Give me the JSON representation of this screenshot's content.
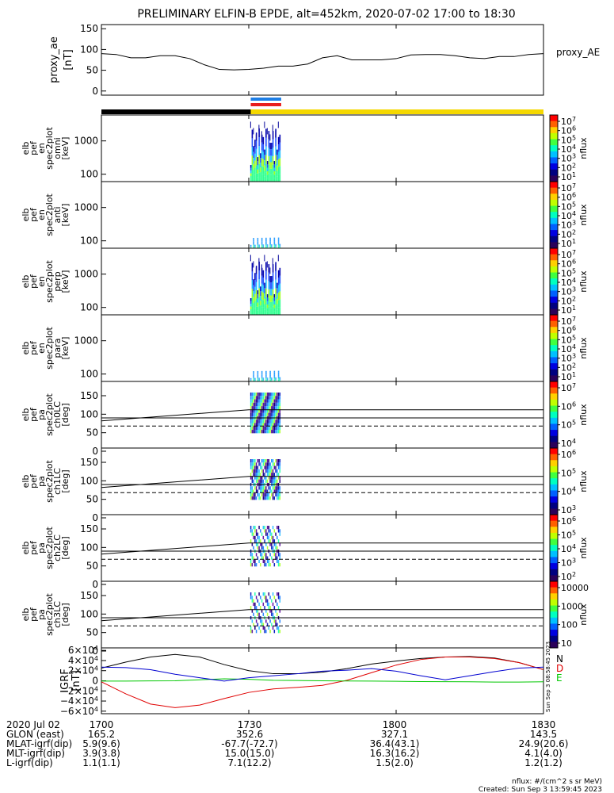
{
  "title": "PRELIMINARY ELFIN-B EPDE, alt=452km, 2020-07-02 17:00 to 18:30",
  "time_ticks": [
    "1700",
    "1730",
    "1800",
    "1830"
  ],
  "time_tick_minutes": [
    0,
    30,
    60,
    90
  ],
  "colors": {
    "spin_blue": "#1e7fe6",
    "spin_red": "#e81e1e",
    "shadow_bar": "#000000",
    "sun_bar": "#f5d800",
    "grf_n": "#000000",
    "grf_e": "#00c800",
    "grf_d": "#e00000",
    "grf_total": "#0000d0"
  },
  "chart_data": [
    {
      "type": "line",
      "id": "proxy_ae",
      "ylabel": [
        "proxy_ae",
        "[nT]"
      ],
      "series_label": "proxy_AE",
      "yticks": [
        "150",
        "100",
        "50",
        "0"
      ],
      "ytick_values": [
        150,
        100,
        50,
        0
      ],
      "ylim": [
        -10,
        160
      ],
      "x_minutes": [
        0,
        3,
        6,
        9,
        12,
        15,
        18,
        21,
        24,
        27,
        30,
        33,
        36,
        39,
        42,
        45,
        48,
        51,
        54,
        57,
        60,
        63,
        66,
        69,
        72,
        75,
        78,
        81,
        84,
        87,
        90
      ],
      "values": [
        90,
        88,
        80,
        80,
        85,
        85,
        78,
        63,
        52,
        51,
        52,
        55,
        60,
        60,
        65,
        80,
        85,
        75,
        75,
        75,
        78,
        87,
        88,
        88,
        85,
        80,
        78,
        83,
        83,
        88,
        90
      ]
    },
    {
      "type": "heatmap",
      "id": "en_omni",
      "ylabel": [
        "elb",
        "pef",
        "en",
        "spec2plot",
        "omni",
        "[keV]"
      ],
      "yticks": [
        "1000",
        "100"
      ],
      "colorbar_ticks": [
        "10^7",
        "10^6",
        "10^5",
        "10^4",
        "10^3",
        "10^2",
        "10^1"
      ],
      "colorbar_label": "nflux",
      "data_window": [
        "1730",
        "1736"
      ]
    },
    {
      "type": "heatmap",
      "id": "en_anti",
      "ylabel": [
        "elb",
        "pef",
        "en",
        "spec2plot",
        "anti",
        "[keV]"
      ],
      "yticks": [
        "1000",
        "100"
      ],
      "colorbar_ticks": [
        "10^7",
        "10^6",
        "10^5",
        "10^4",
        "10^3",
        "10^2",
        "10^1"
      ],
      "colorbar_label": "nflux",
      "data_window": [
        "1730",
        "1736"
      ]
    },
    {
      "type": "heatmap",
      "id": "en_perp",
      "ylabel": [
        "elb",
        "pef",
        "en",
        "spec2plot",
        "perp",
        "[keV]"
      ],
      "yticks": [
        "1000",
        "100"
      ],
      "colorbar_ticks": [
        "10^7",
        "10^6",
        "10^5",
        "10^4",
        "10^3",
        "10^2",
        "10^1"
      ],
      "colorbar_label": "nflux",
      "data_window": [
        "1730",
        "1736"
      ]
    },
    {
      "type": "heatmap",
      "id": "en_para",
      "ylabel": [
        "elb",
        "pef",
        "en",
        "spec2plot",
        "para",
        "[keV]"
      ],
      "yticks": [
        "1000",
        "100"
      ],
      "colorbar_ticks": [
        "10^7",
        "10^6",
        "10^5",
        "10^4",
        "10^3",
        "10^2",
        "10^1"
      ],
      "colorbar_label": "nflux",
      "data_window": [
        "1730",
        "1736"
      ]
    },
    {
      "type": "heatmap",
      "id": "pa_ch0",
      "ylabel": [
        "elb",
        "pef",
        "pa",
        "spec2plot",
        "ch0LC",
        "[deg]"
      ],
      "yticks": [
        "150",
        "100",
        "50",
        "0"
      ],
      "colorbar_ticks": [
        "10^7",
        "10^6",
        "10^5",
        "10^4"
      ],
      "colorbar_label": "nflux",
      "data_window": [
        "1730",
        "1736"
      ]
    },
    {
      "type": "heatmap",
      "id": "pa_ch1",
      "ylabel": [
        "elb",
        "pef",
        "pa",
        "spec2plot",
        "ch1LC",
        "[deg]"
      ],
      "yticks": [
        "150",
        "100",
        "50",
        "0"
      ],
      "colorbar_ticks": [
        "10^6",
        "10^5",
        "10^4",
        "10^3"
      ],
      "colorbar_label": "nflux",
      "data_window": [
        "1730",
        "1736"
      ]
    },
    {
      "type": "heatmap",
      "id": "pa_ch2",
      "ylabel": [
        "elb",
        "pef",
        "pa",
        "spec2plot",
        "ch2LC",
        "[deg]"
      ],
      "yticks": [
        "150",
        "100",
        "50",
        "0"
      ],
      "colorbar_ticks": [
        "10^6",
        "10^5",
        "10^4",
        "10^3",
        "10^2"
      ],
      "colorbar_label": "nflux",
      "data_window": [
        "1730",
        "1736"
      ]
    },
    {
      "type": "heatmap",
      "id": "pa_ch3",
      "ylabel": [
        "elb",
        "pef",
        "pa",
        "spec2plot",
        "ch3LC",
        "[deg]"
      ],
      "yticks": [
        "150",
        "100",
        "50",
        "0"
      ],
      "colorbar_ticks": [
        "10000",
        "1000",
        "100",
        "10"
      ],
      "colorbar_label": "nflux",
      "data_window": [
        "1730",
        "1736"
      ]
    },
    {
      "type": "line",
      "id": "igrf",
      "ylabel": [
        "IGRF",
        "[nT]"
      ],
      "yticks": [
        "6×10^4",
        "4×10^4",
        "2×10^4",
        "0",
        "−2×10^4",
        "−4×10^4",
        "−6×10^4"
      ],
      "ytick_values": [
        60000,
        40000,
        20000,
        0,
        -20000,
        -40000,
        -60000
      ],
      "ylim": [
        -65000,
        65000
      ],
      "legend": [
        "N",
        "D",
        "E"
      ],
      "legend_colors": [
        "grf_n",
        "grf_d",
        "grf_e"
      ],
      "side_text": "Sun Sep 3 08:58:45 2023",
      "x_minutes": [
        0,
        5,
        10,
        15,
        20,
        25,
        30,
        35,
        40,
        45,
        50,
        55,
        60,
        65,
        70,
        75,
        80,
        85,
        90
      ],
      "series": [
        {
          "name": "N",
          "color": "grf_n",
          "values": [
            25000,
            37000,
            47000,
            52000,
            47000,
            32000,
            20000,
            14000,
            14000,
            17000,
            24000,
            33000,
            39000,
            44000,
            47000,
            48000,
            45000,
            36000,
            22000
          ]
        },
        {
          "name": "D",
          "color": "grf_d",
          "values": [
            -2000,
            -26000,
            -46000,
            -53000,
            -48000,
            -35000,
            -23000,
            -16000,
            -13000,
            -9000,
            1000,
            16000,
            31000,
            42000,
            47000,
            47000,
            44000,
            36000,
            22000
          ]
        },
        {
          "name": "E",
          "color": "grf_e",
          "values": [
            -500,
            -500,
            -200,
            0,
            2000,
            4000,
            3000,
            1000,
            500,
            0,
            -300,
            -600,
            -1000,
            -1500,
            -1800,
            -2000,
            -2500,
            -2500,
            -2000
          ]
        },
        {
          "name": "total",
          "color": "grf_total",
          "values": [
            27000,
            26000,
            22000,
            13000,
            6000,
            -500,
            6000,
            10000,
            14000,
            19000,
            21000,
            24000,
            19000,
            10000,
            2000,
            10000,
            18000,
            25000,
            27000
          ]
        }
      ]
    }
  ],
  "orbit_table": [
    {
      "label": "2020 Jul 02",
      "values": [
        "1700",
        "1730",
        "1800",
        "1830"
      ]
    },
    {
      "label": "GLON (east)",
      "values": [
        "165.2",
        "352.6",
        "327.1",
        "143.5"
      ]
    },
    {
      "label": "MLAT-igrf(dip)",
      "values": [
        "5.9(9.6)",
        "-67.7(-72.7)",
        "36.4(43.1)",
        "24.9(20.6)"
      ]
    },
    {
      "label": "MLT-igrf(dip)",
      "values": [
        "3.9(3.8)",
        "15.0(15.0)",
        "16.3(16.2)",
        "4.1(4.0)"
      ]
    },
    {
      "label": "L-igrf(dip)",
      "values": [
        "1.1(1.1)",
        "7.1(12.2)",
        "1.5(2.0)",
        "1.2(1.2)"
      ]
    }
  ],
  "footer": {
    "units": "nflux: #/(cm^2 s sr MeV)",
    "created": "Created: Sun Sep  3 13:59:45 2023"
  }
}
